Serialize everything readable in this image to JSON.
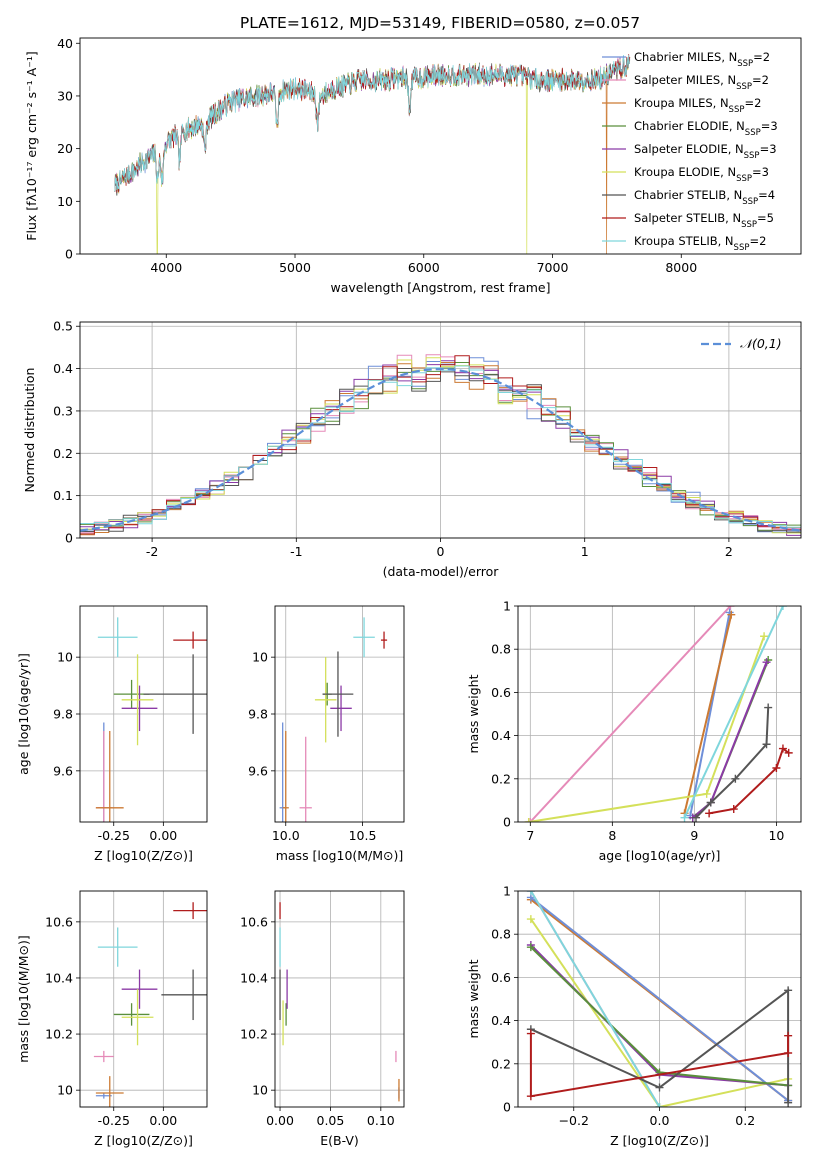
{
  "figure_title": "PLATE=1612, MJD=53149, FIBERID=0580, z=0.057",
  "fits": [
    {
      "name": "Chabrier MILES",
      "nssp": "2",
      "color": "#6f8fd8"
    },
    {
      "name": "Salpeter MILES",
      "nssp": "2",
      "color": "#e58ab8"
    },
    {
      "name": "Kroupa MILES",
      "nssp": "2",
      "color": "#cc7a33"
    },
    {
      "name": "Chabrier ELODIE",
      "nssp": "3",
      "color": "#5a8f3c"
    },
    {
      "name": "Salpeter ELODIE",
      "nssp": "3",
      "color": "#8b3aa6"
    },
    {
      "name": "Kroupa ELODIE",
      "nssp": "3",
      "color": "#d4e05a"
    },
    {
      "name": "Chabrier STELIB",
      "nssp": "4",
      "color": "#555555"
    },
    {
      "name": "Salpeter STELIB",
      "nssp": "5",
      "color": "#b01c1c"
    },
    {
      "name": "Kroupa STELIB",
      "nssp": "2",
      "color": "#7fd6dc"
    }
  ],
  "chart_data": [
    {
      "id": "spectrum",
      "type": "line",
      "xlabel": "wavelength [Angstrom, rest frame]",
      "ylabel": "Flux [fλ10⁻¹⁷ erg cm⁻² s⁻¹ A⁻¹]",
      "xlim": [
        3330,
        8930
      ],
      "ylim": [
        0,
        41
      ],
      "xticks": [
        4000,
        5000,
        6000,
        7000,
        8000
      ],
      "yticks": [
        0,
        10,
        20,
        30,
        40
      ],
      "grid": false,
      "legend_position": "right",
      "continuum": [
        [
          3600,
          13
        ],
        [
          3700,
          15
        ],
        [
          3800,
          17
        ],
        [
          3900,
          19
        ],
        [
          4000,
          21
        ],
        [
          4100,
          23
        ],
        [
          4200,
          24
        ],
        [
          4300,
          25
        ],
        [
          4400,
          27
        ],
        [
          4500,
          29
        ],
        [
          4600,
          29.5
        ],
        [
          4700,
          30
        ],
        [
          4800,
          30.5
        ],
        [
          4900,
          31
        ],
        [
          5000,
          31.5
        ],
        [
          5100,
          31
        ],
        [
          5200,
          30
        ],
        [
          5300,
          31.5
        ],
        [
          5400,
          32
        ],
        [
          5500,
          33
        ],
        [
          5600,
          33
        ],
        [
          5700,
          33
        ],
        [
          5800,
          33.5
        ],
        [
          5900,
          33.5
        ],
        [
          6000,
          33.5
        ],
        [
          6100,
          34
        ],
        [
          6200,
          34
        ],
        [
          6300,
          34
        ],
        [
          6400,
          34
        ],
        [
          6500,
          34
        ],
        [
          6600,
          34
        ],
        [
          6700,
          34
        ],
        [
          6800,
          33.5
        ],
        [
          6900,
          33
        ],
        [
          7000,
          33
        ],
        [
          7100,
          33
        ],
        [
          7200,
          33
        ],
        [
          7300,
          33
        ],
        [
          7400,
          33.5
        ],
        [
          7500,
          35
        ],
        [
          7600,
          36
        ]
      ],
      "absorption": [
        [
          3933,
          14
        ],
        [
          3968,
          14
        ],
        [
          4102,
          18
        ],
        [
          4300,
          20
        ],
        [
          4861,
          24
        ],
        [
          5175,
          25
        ],
        [
          5890,
          28
        ]
      ],
      "spikes_to_zero": [
        {
          "wavelength": 3930,
          "series": "Kroupa ELODIE"
        },
        {
          "wavelength": 6800,
          "series": "Kroupa ELODIE"
        },
        {
          "wavelength": 7420,
          "series": "Kroupa MILES"
        }
      ]
    },
    {
      "id": "residuals",
      "type": "histogram",
      "xlabel": "(data-model)/error",
      "ylabel": "Normed distribution",
      "xlim": [
        -2.5,
        2.5
      ],
      "ylim": [
        0,
        0.51
      ],
      "xticks": [
        -2,
        -1,
        0,
        1,
        2
      ],
      "yticks": [
        0.0,
        0.1,
        0.2,
        0.3,
        0.4,
        0.5
      ],
      "grid": true,
      "legend_position": "top-right",
      "reference": {
        "label": "𝒩(0,1)",
        "mean": 0,
        "sigma": 1,
        "color": "#5b8fd8"
      },
      "bin_width": 0.1
    },
    {
      "id": "age_vs_Z",
      "type": "scatter",
      "xlabel": "Z [log10(Z/Z⊙)]",
      "ylabel": "age  [log10(age/yr)]",
      "xlim": [
        -0.42,
        0.22
      ],
      "ylim": [
        9.42,
        10.18
      ],
      "xticks": [
        -0.25,
        0.0
      ],
      "xtick_labels": [
        "-0.25",
        "0.00"
      ],
      "yticks": [
        9.6,
        9.8,
        10.0
      ],
      "grid": true,
      "points": [
        {
          "series": "Chabrier MILES",
          "x": -0.3,
          "y": 9.47,
          "xerr": 0.03,
          "yerr": 0.3
        },
        {
          "series": "Salpeter MILES",
          "x": -0.3,
          "y": 9.47,
          "xerr": 0.04,
          "yerr": 0.27
        },
        {
          "series": "Kroupa MILES",
          "x": -0.27,
          "y": 9.47,
          "xerr": 0.07,
          "yerr": 0.27
        },
        {
          "series": "Chabrier ELODIE",
          "x": -0.16,
          "y": 9.87,
          "xerr": 0.09,
          "yerr": 0.05
        },
        {
          "series": "Salpeter ELODIE",
          "x": -0.12,
          "y": 9.82,
          "xerr": 0.09,
          "yerr": 0.08
        },
        {
          "series": "Kroupa ELODIE",
          "x": -0.13,
          "y": 9.85,
          "xerr": 0.08,
          "yerr": 0.16
        },
        {
          "series": "Chabrier STELIB",
          "x": 0.15,
          "y": 9.87,
          "xerr": 0.25,
          "yerr": 0.14
        },
        {
          "series": "Salpeter STELIB",
          "x": 0.15,
          "y": 10.06,
          "xerr": 0.1,
          "yerr": 0.03
        },
        {
          "series": "Kroupa STELIB",
          "x": -0.23,
          "y": 10.07,
          "xerr": 0.1,
          "yerr": 0.07
        }
      ]
    },
    {
      "id": "age_vs_mass",
      "type": "scatter",
      "xlabel": "mass [log10(M/M⊙)]",
      "ylabel": "",
      "xlim": [
        9.93,
        10.77
      ],
      "ylim": [
        9.42,
        10.18
      ],
      "xticks": [
        10.0,
        10.5
      ],
      "xtick_labels": [
        "10.0",
        "10.5"
      ],
      "yticks": [
        9.6,
        9.8,
        10.0
      ],
      "grid": true,
      "points": [
        {
          "series": "Chabrier MILES",
          "x": 9.98,
          "y": 9.47,
          "xerr": 0.02,
          "yerr": 0.3
        },
        {
          "series": "Salpeter MILES",
          "x": 10.13,
          "y": 9.47,
          "xerr": 0.04,
          "yerr": 0.25
        },
        {
          "series": "Kroupa MILES",
          "x": 10.0,
          "y": 9.47,
          "xerr": 0.02,
          "yerr": 0.27
        },
        {
          "series": "Chabrier ELODIE",
          "x": 10.27,
          "y": 9.87,
          "xerr": 0.03,
          "yerr": 0.04
        },
        {
          "series": "Salpeter ELODIE",
          "x": 10.36,
          "y": 9.82,
          "xerr": 0.07,
          "yerr": 0.08
        },
        {
          "series": "Kroupa ELODIE",
          "x": 10.26,
          "y": 9.85,
          "xerr": 0.07,
          "yerr": 0.15
        },
        {
          "series": "Chabrier STELIB",
          "x": 10.34,
          "y": 9.87,
          "xerr": 0.1,
          "yerr": 0.15
        },
        {
          "series": "Salpeter STELIB",
          "x": 10.64,
          "y": 10.06,
          "xerr": 0.02,
          "yerr": 0.03
        },
        {
          "series": "Kroupa STELIB",
          "x": 10.51,
          "y": 10.07,
          "xerr": 0.07,
          "yerr": 0.07
        }
      ]
    },
    {
      "id": "mass_weight_vs_age",
      "type": "line",
      "xlabel": "age  [log10(age/yr)]",
      "ylabel": "mass weight",
      "xlim": [
        6.85,
        10.3
      ],
      "ylim": [
        0,
        1
      ],
      "xticks": [
        7,
        8,
        9,
        10
      ],
      "yticks": [
        0.0,
        0.2,
        0.4,
        0.6,
        0.8,
        1.0
      ],
      "grid": true,
      "series": [
        {
          "series": "Salpeter MILES",
          "points": [
            [
              7.0,
              0.0
            ],
            [
              9.44,
              1.0
            ]
          ]
        },
        {
          "series": "Chabrier MILES",
          "points": [
            [
              8.95,
              0.03
            ],
            [
              9.43,
              0.97
            ]
          ]
        },
        {
          "series": "Kroupa MILES",
          "points": [
            [
              8.88,
              0.04
            ],
            [
              9.45,
              0.96
            ]
          ]
        },
        {
          "series": "Kroupa ELODIE",
          "points": [
            [
              6.98,
              0.0
            ],
            [
              9.15,
              0.13
            ],
            [
              9.85,
              0.86
            ]
          ]
        },
        {
          "series": "Chabrier ELODIE",
          "points": [
            [
              8.98,
              0.02
            ],
            [
              9.2,
              0.09
            ],
            [
              9.9,
              0.75
            ]
          ]
        },
        {
          "series": "Salpeter ELODIE",
          "points": [
            [
              8.98,
              0.02
            ],
            [
              9.2,
              0.09
            ],
            [
              9.88,
              0.74
            ]
          ]
        },
        {
          "series": "Kroupa STELIB",
          "points": [
            [
              8.88,
              0.02
            ],
            [
              10.08,
              1.0
            ]
          ]
        },
        {
          "series": "Chabrier STELIB",
          "points": [
            [
              9.02,
              0.02
            ],
            [
              9.2,
              0.09
            ],
            [
              9.5,
              0.2
            ],
            [
              9.88,
              0.36
            ],
            [
              9.9,
              0.53
            ]
          ]
        },
        {
          "series": "Salpeter STELIB",
          "points": [
            [
              9.18,
              0.04
            ],
            [
              9.48,
              0.06
            ],
            [
              10.0,
              0.25
            ],
            [
              10.08,
              0.34
            ],
            [
              10.15,
              0.32
            ]
          ]
        }
      ]
    },
    {
      "id": "mass_vs_Z",
      "type": "scatter",
      "xlabel": "Z [log10(Z/Z⊙)]",
      "ylabel": "mass [log10(M/M⊙)]",
      "xlim": [
        -0.42,
        0.22
      ],
      "ylim": [
        9.94,
        10.71
      ],
      "xticks": [
        -0.25,
        0.0
      ],
      "xtick_labels": [
        "-0.25",
        "0.00"
      ],
      "yticks": [
        10.0,
        10.2,
        10.4,
        10.6
      ],
      "grid": true,
      "points": [
        {
          "series": "Chabrier MILES",
          "x": -0.3,
          "y": 9.98,
          "xerr": 0.04,
          "yerr": 0.01
        },
        {
          "series": "Salpeter MILES",
          "x": -0.3,
          "y": 10.12,
          "xerr": 0.05,
          "yerr": 0.02
        },
        {
          "series": "Kroupa MILES",
          "x": -0.27,
          "y": 9.99,
          "xerr": 0.07,
          "yerr": 0.06
        },
        {
          "series": "Chabrier ELODIE",
          "x": -0.16,
          "y": 10.27,
          "xerr": 0.09,
          "yerr": 0.04
        },
        {
          "series": "Salpeter ELODIE",
          "x": -0.12,
          "y": 10.36,
          "xerr": 0.09,
          "yerr": 0.07
        },
        {
          "series": "Kroupa ELODIE",
          "x": -0.13,
          "y": 10.26,
          "xerr": 0.08,
          "yerr": 0.1
        },
        {
          "series": "Chabrier STELIB",
          "x": 0.15,
          "y": 10.34,
          "xerr": 0.16,
          "yerr": 0.09
        },
        {
          "series": "Salpeter STELIB",
          "x": 0.15,
          "y": 10.64,
          "xerr": 0.1,
          "yerr": 0.03
        },
        {
          "series": "Kroupa STELIB",
          "x": -0.23,
          "y": 10.51,
          "xerr": 0.1,
          "yerr": 0.07
        }
      ]
    },
    {
      "id": "mass_vs_ebv",
      "type": "scatter",
      "xlabel": "E(B-V)",
      "ylabel": "",
      "xlim": [
        -0.005,
        0.123
      ],
      "ylim": [
        9.94,
        10.71
      ],
      "xticks": [
        0.0,
        0.05,
        0.1
      ],
      "xtick_labels": [
        "0.00",
        "0.05",
        "0.10"
      ],
      "yticks": [
        10.0,
        10.2,
        10.4,
        10.6
      ],
      "grid": true,
      "points": [
        {
          "series": "Chabrier MILES",
          "x": 0.118,
          "y": 9.99,
          "xerr": 0.0,
          "yerr": 0.02
        },
        {
          "series": "Salpeter MILES",
          "x": 0.115,
          "y": 10.12,
          "xerr": 0.0,
          "yerr": 0.02
        },
        {
          "series": "Kroupa MILES",
          "x": 0.118,
          "y": 10.0,
          "xerr": 0.0,
          "yerr": 0.04
        },
        {
          "series": "Chabrier ELODIE",
          "x": 0.006,
          "y": 10.27,
          "xerr": 0.0,
          "yerr": 0.04
        },
        {
          "series": "Salpeter ELODIE",
          "x": 0.007,
          "y": 10.36,
          "xerr": 0.0,
          "yerr": 0.07
        },
        {
          "series": "Kroupa ELODIE",
          "x": 0.003,
          "y": 10.24,
          "xerr": 0.0,
          "yerr": 0.08
        },
        {
          "series": "Chabrier STELIB",
          "x": 0.0,
          "y": 10.34,
          "xerr": 0.0,
          "yerr": 0.09
        },
        {
          "series": "Salpeter STELIB",
          "x": 0.0,
          "y": 10.64,
          "xerr": 0.0,
          "yerr": 0.03
        },
        {
          "series": "Kroupa STELIB",
          "x": 0.0,
          "y": 10.51,
          "xerr": 0.0,
          "yerr": 0.07
        }
      ]
    },
    {
      "id": "mass_weight_vs_Z",
      "type": "line",
      "xlabel": "Z [log10(Z/Z⊙)]",
      "ylabel": "mass weight",
      "xlim": [
        -0.33,
        0.33
      ],
      "ylim": [
        0,
        1
      ],
      "xticks": [
        -0.2,
        0.0,
        0.2
      ],
      "xtick_labels": [
        "−0.2",
        "0.0",
        "0.2"
      ],
      "yticks": [
        0.0,
        0.2,
        0.4,
        0.6,
        0.8,
        1.0
      ],
      "grid": true,
      "series": [
        {
          "series": "Kroupa MILES",
          "points": [
            [
              -0.3,
              0.96
            ],
            [
              0.3,
              0.03
            ]
          ]
        },
        {
          "series": "Chabrier MILES",
          "points": [
            [
              -0.3,
              0.97
            ],
            [
              0.3,
              0.03
            ]
          ]
        },
        {
          "series": "Salpeter MILES",
          "points": [
            [
              -0.3,
              1.0
            ],
            [
              0.0,
              0.0
            ]
          ]
        },
        {
          "series": "Kroupa ELODIE",
          "points": [
            [
              -0.3,
              0.87
            ],
            [
              0.0,
              0.0
            ],
            [
              0.3,
              0.13
            ]
          ]
        },
        {
          "series": "Salpeter ELODIE",
          "points": [
            [
              -0.3,
              0.75
            ],
            [
              0.0,
              0.15
            ],
            [
              0.3,
              0.1
            ]
          ]
        },
        {
          "series": "Chabrier ELODIE",
          "points": [
            [
              -0.3,
              0.74
            ],
            [
              0.0,
              0.16
            ],
            [
              0.3,
              0.1
            ]
          ]
        },
        {
          "series": "Kroupa STELIB",
          "points": [
            [
              -0.3,
              1.0
            ],
            [
              0.0,
              0.0
            ]
          ]
        },
        {
          "series": "Chabrier STELIB",
          "points": [
            [
              -0.3,
              0.36
            ],
            [
              0.0,
              0.09
            ],
            [
              0.3,
              0.54
            ],
            [
              0.3,
              0.02
            ]
          ]
        },
        {
          "series": "Salpeter STELIB",
          "points": [
            [
              -0.3,
              0.34
            ],
            [
              -0.3,
              0.05
            ],
            [
              0.3,
              0.25
            ],
            [
              0.3,
              0.33
            ]
          ]
        }
      ]
    }
  ]
}
